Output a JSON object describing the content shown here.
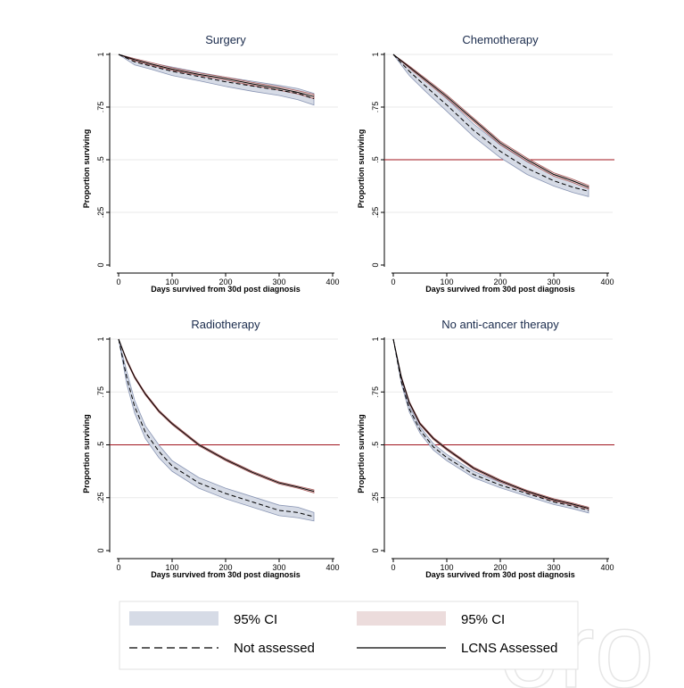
{
  "chart_data": [
    {
      "type": "line",
      "title": "Surgery",
      "xlabel": "Days survived from 30d post diagnosis",
      "ylabel": "Proportion surviving",
      "xlim": [
        0,
        400
      ],
      "ylim": [
        0,
        1
      ],
      "x_ticks": [
        "0",
        "100",
        "200",
        "300",
        "400"
      ],
      "y_ticks": [
        "0",
        ".25",
        ".5",
        ".75",
        "1"
      ],
      "reference_line": null,
      "x": [
        0,
        30,
        60,
        100,
        150,
        200,
        250,
        300,
        335,
        365
      ],
      "series": [
        {
          "name": "LCNS Assessed",
          "style": "solid",
          "values": [
            1.0,
            0.975,
            0.955,
            0.93,
            0.905,
            0.885,
            0.86,
            0.838,
            0.82,
            0.8
          ],
          "ci_lower": [
            1.0,
            0.97,
            0.95,
            0.925,
            0.9,
            0.878,
            0.853,
            0.83,
            0.812,
            0.79
          ],
          "ci_upper": [
            1.0,
            0.98,
            0.962,
            0.937,
            0.912,
            0.892,
            0.867,
            0.846,
            0.828,
            0.81
          ]
        },
        {
          "name": "Not assessed",
          "style": "dashed",
          "values": [
            1.0,
            0.965,
            0.945,
            0.92,
            0.895,
            0.87,
            0.85,
            0.83,
            0.815,
            0.79
          ],
          "ci_lower": [
            1.0,
            0.95,
            0.93,
            0.9,
            0.875,
            0.848,
            0.825,
            0.805,
            0.785,
            0.76
          ],
          "ci_upper": [
            1.0,
            0.98,
            0.96,
            0.94,
            0.915,
            0.892,
            0.873,
            0.853,
            0.838,
            0.815
          ]
        }
      ]
    },
    {
      "type": "line",
      "title": "Chemotherapy",
      "xlabel": "Days survived from 30d post diagnosis",
      "ylabel": "Proportion surviving",
      "xlim": [
        0,
        400
      ],
      "ylim": [
        0,
        1
      ],
      "x_ticks": [
        "0",
        "100",
        "200",
        "300",
        "400"
      ],
      "y_ticks": [
        "0",
        ".25",
        ".5",
        ".75",
        "1"
      ],
      "reference_line": 0.5,
      "x": [
        0,
        30,
        60,
        100,
        150,
        200,
        250,
        300,
        335,
        365
      ],
      "series": [
        {
          "name": "LCNS Assessed",
          "style": "solid",
          "values": [
            1.0,
            0.94,
            0.88,
            0.8,
            0.69,
            0.58,
            0.5,
            0.43,
            0.4,
            0.37
          ],
          "ci_lower": [
            1.0,
            0.935,
            0.873,
            0.792,
            0.682,
            0.572,
            0.492,
            0.422,
            0.392,
            0.362
          ],
          "ci_upper": [
            1.0,
            0.945,
            0.887,
            0.808,
            0.698,
            0.588,
            0.508,
            0.438,
            0.408,
            0.378
          ]
        },
        {
          "name": "Not assessed",
          "style": "dashed",
          "values": [
            1.0,
            0.92,
            0.85,
            0.76,
            0.64,
            0.54,
            0.46,
            0.4,
            0.37,
            0.35
          ],
          "ci_lower": [
            1.0,
            0.9,
            0.825,
            0.73,
            0.61,
            0.51,
            0.43,
            0.375,
            0.345,
            0.325
          ],
          "ci_upper": [
            1.0,
            0.94,
            0.875,
            0.79,
            0.67,
            0.57,
            0.49,
            0.425,
            0.395,
            0.375
          ]
        }
      ]
    },
    {
      "type": "line",
      "title": "Radiotherapy",
      "xlabel": "Days survived from 30d post diagnosis",
      "ylabel": "Proportion surviving",
      "xlim": [
        0,
        400
      ],
      "ylim": [
        0,
        1
      ],
      "x_ticks": [
        "0",
        "100",
        "200",
        "300",
        "400"
      ],
      "y_ticks": [
        "0",
        ".25",
        ".5",
        ".75",
        "1"
      ],
      "reference_line": 0.5,
      "x": [
        0,
        15,
        30,
        50,
        75,
        100,
        150,
        200,
        250,
        300,
        335,
        365
      ],
      "series": [
        {
          "name": "LCNS Assessed",
          "style": "solid",
          "values": [
            1.0,
            0.9,
            0.82,
            0.74,
            0.66,
            0.6,
            0.5,
            0.43,
            0.37,
            0.32,
            0.3,
            0.28
          ],
          "ci_lower": [
            1.0,
            0.895,
            0.815,
            0.735,
            0.655,
            0.595,
            0.495,
            0.425,
            0.365,
            0.315,
            0.295,
            0.273
          ],
          "ci_upper": [
            1.0,
            0.905,
            0.825,
            0.745,
            0.665,
            0.605,
            0.505,
            0.435,
            0.375,
            0.325,
            0.305,
            0.287
          ]
        },
        {
          "name": "Not assessed",
          "style": "dashed",
          "values": [
            1.0,
            0.82,
            0.68,
            0.56,
            0.47,
            0.4,
            0.32,
            0.27,
            0.23,
            0.19,
            0.18,
            0.16
          ],
          "ci_lower": [
            1.0,
            0.79,
            0.65,
            0.53,
            0.44,
            0.375,
            0.295,
            0.245,
            0.205,
            0.165,
            0.155,
            0.14
          ],
          "ci_upper": [
            1.0,
            0.85,
            0.71,
            0.59,
            0.5,
            0.425,
            0.345,
            0.295,
            0.255,
            0.215,
            0.205,
            0.18
          ]
        }
      ]
    },
    {
      "type": "line",
      "title": "No anti-cancer therapy",
      "xlabel": "Days survived from 30d post diagnosis",
      "ylabel": "Proportion surviving",
      "xlim": [
        0,
        400
      ],
      "ylim": [
        0,
        1
      ],
      "x_ticks": [
        "0",
        "100",
        "200",
        "300",
        "400"
      ],
      "y_ticks": [
        "0",
        ".25",
        ".5",
        ".75",
        "1"
      ],
      "reference_line": 0.5,
      "x": [
        0,
        15,
        30,
        50,
        75,
        100,
        150,
        200,
        250,
        300,
        335,
        365
      ],
      "series": [
        {
          "name": "LCNS Assessed",
          "style": "solid",
          "values": [
            1.0,
            0.82,
            0.7,
            0.6,
            0.53,
            0.48,
            0.39,
            0.33,
            0.28,
            0.24,
            0.22,
            0.2
          ],
          "ci_lower": [
            1.0,
            0.815,
            0.695,
            0.595,
            0.525,
            0.475,
            0.385,
            0.325,
            0.275,
            0.235,
            0.215,
            0.195
          ],
          "ci_upper": [
            1.0,
            0.825,
            0.705,
            0.605,
            0.535,
            0.485,
            0.395,
            0.335,
            0.285,
            0.245,
            0.225,
            0.205
          ]
        },
        {
          "name": "Not assessed",
          "style": "dashed",
          "values": [
            1.0,
            0.8,
            0.67,
            0.57,
            0.49,
            0.44,
            0.36,
            0.31,
            0.27,
            0.23,
            0.21,
            0.19
          ],
          "ci_lower": [
            1.0,
            0.79,
            0.655,
            0.555,
            0.475,
            0.425,
            0.345,
            0.297,
            0.257,
            0.218,
            0.198,
            0.178
          ],
          "ci_upper": [
            1.0,
            0.81,
            0.685,
            0.585,
            0.505,
            0.455,
            0.375,
            0.323,
            0.283,
            0.243,
            0.223,
            0.203
          ]
        }
      ]
    }
  ],
  "legend": [
    {
      "label": "95% CI",
      "kind": "band",
      "color": "#d6dbe6"
    },
    {
      "label": "95% CI",
      "kind": "band",
      "color": "#ecdcdc"
    },
    {
      "label": "Not assessed",
      "kind": "dashed",
      "color": "#000000"
    },
    {
      "label": "LCNS Assessed",
      "kind": "solid",
      "color": "#000000"
    }
  ],
  "colors": {
    "ci_not_assessed_fill": "#d6dbe6",
    "ci_not_assessed_edge": "#8a96b4",
    "ci_assessed_fill": "#ecdcdc",
    "ci_assessed_edge": "#a85a5a",
    "reference_line": "#a0141e",
    "grid": "#eaeaea",
    "title": "#1a2b4c"
  }
}
